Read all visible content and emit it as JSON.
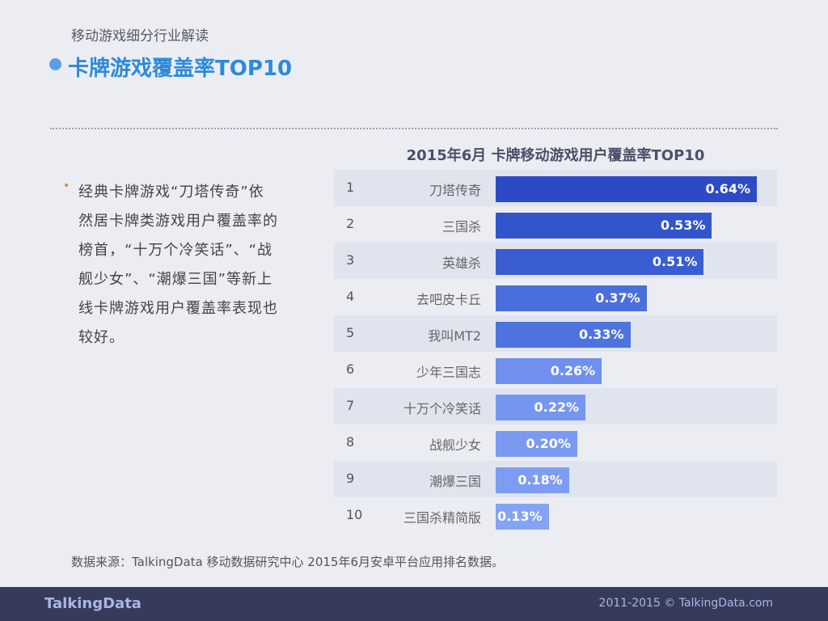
{
  "header": {
    "subtitle": "移动游戏细分行业解读",
    "title": "卡牌游戏覆盖率TOP10"
  },
  "text": {
    "bullet": "•",
    "paragraph": "经典卡牌游戏“刀塔传奇”依然居卡牌类游戏用户覆盖率的榜首，“十万个冷笑话”、“战舰少女”、“潮爆三国”等新上线卡牌游戏用户覆盖率表现也较好。"
  },
  "chart_data": {
    "type": "bar",
    "orientation": "horizontal",
    "title": "2015年6月 卡牌移动游戏用户覆盖率TOP10",
    "ranks": [
      "1",
      "2",
      "3",
      "4",
      "5",
      "6",
      "7",
      "8",
      "9",
      "10"
    ],
    "categories": [
      "刀塔传奇",
      "三国杀",
      "英雄杀",
      "去吧皮卡丘",
      "我叫MT2",
      "少年三国志",
      "十万个冷笑话",
      "战舰少女",
      "潮爆三国",
      "三国杀精简版"
    ],
    "values": [
      0.64,
      0.53,
      0.51,
      0.37,
      0.33,
      0.26,
      0.22,
      0.2,
      0.18,
      0.13
    ],
    "labels": [
      "0.64%",
      "0.53%",
      "0.51%",
      "0.37%",
      "0.33%",
      "0.26%",
      "0.22%",
      "0.20%",
      "0.18%",
      "0.13%"
    ],
    "colors": [
      "#2d4ac6",
      "#3355cc",
      "#3a5dd2",
      "#4a6edc",
      "#4f73de",
      "#6f90ee",
      "#7596f0",
      "#7a9af2",
      "#7d9df2",
      "#84a3f4"
    ]
  },
  "source": "数据来源：TalkingData 移动数据研究中心 2015年6月安卓平台应用排名数据。",
  "footer": {
    "logo": "TalkingData",
    "copyright": "2011-2015 © TalkingData.com"
  }
}
